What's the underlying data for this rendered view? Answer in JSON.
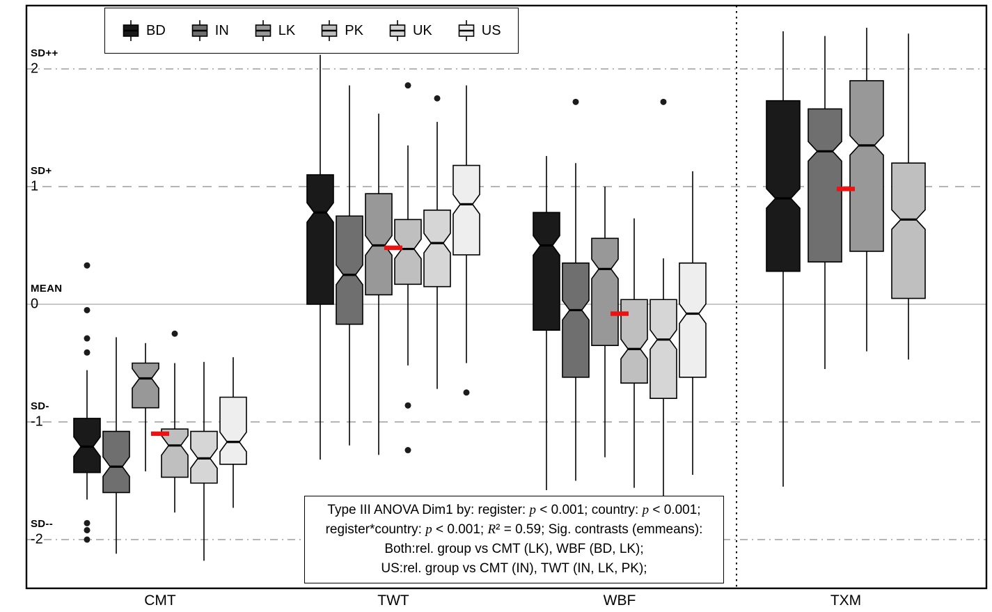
{
  "figure": {
    "background": "#ffffff",
    "border_color": "#000000"
  },
  "legend": {
    "items": [
      {
        "label": "BD",
        "color": "#1a1a1a"
      },
      {
        "label": "IN",
        "color": "#6f6f6f"
      },
      {
        "label": "LK",
        "color": "#989898"
      },
      {
        "label": "PK",
        "color": "#bfbfbf"
      },
      {
        "label": "UK",
        "color": "#d6d6d6"
      },
      {
        "label": "US",
        "color": "#eeeeee"
      }
    ]
  },
  "annotation": {
    "lines": [
      "Type III ANOVA Dim1 by: register: p < 0.001; country: p < 0.001;",
      "register*country: p < 0.001; R² = 0.59; Sig. contrasts (emmeans):",
      "Both:rel. group vs CMT (LK), WBF (BD, LK);",
      "US:rel. group vs CMT (IN), TWT (IN, LK, PK);"
    ]
  },
  "chart_data": {
    "type": "boxplot",
    "orientation": "vertical",
    "title": "",
    "xlabel": "",
    "ylabel": "",
    "categories": [
      "CMT",
      "TWT",
      "WBF",
      "TXM"
    ],
    "series_key": "country",
    "y_axis": {
      "ylim": [
        -2.45,
        2.55
      ],
      "ticks": [
        {
          "value": 2,
          "number": "2",
          "sd_label": "SD++",
          "line_style": "dashdot"
        },
        {
          "value": 1,
          "number": "1",
          "sd_label": "SD+",
          "line_style": "dashed"
        },
        {
          "value": 0,
          "number": "0",
          "sd_label": "MEAN",
          "line_style": "solid"
        },
        {
          "value": -1,
          "number": "-1",
          "sd_label": "SD-",
          "line_style": "dashed"
        },
        {
          "value": -2,
          "number": "-2",
          "sd_label": "SD--",
          "line_style": "dashdot"
        }
      ]
    },
    "divider_before_category": "TXM",
    "red_markers": {
      "meaning": "register mean marker",
      "color": "#ee1111",
      "values": {
        "CMT": -1.1,
        "TWT": 0.48,
        "WBF": -0.08,
        "TXM": 0.98
      }
    },
    "groups": [
      {
        "register": "CMT",
        "boxes": [
          {
            "country": "BD",
            "whislo": -1.66,
            "q1": -1.43,
            "med": -1.21,
            "q3": -0.97,
            "whishi": -0.56,
            "outliers": [
              0.33,
              -0.05,
              -0.29,
              -0.41,
              -1.86,
              -1.92,
              -2.0
            ]
          },
          {
            "country": "IN",
            "whislo": -2.12,
            "q1": -1.6,
            "med": -1.38,
            "q3": -1.08,
            "whishi": -0.28,
            "outliers": []
          },
          {
            "country": "LK",
            "whislo": -1.42,
            "q1": -0.88,
            "med": -0.63,
            "q3": -0.5,
            "whishi": -0.33,
            "outliers": []
          },
          {
            "country": "PK",
            "whislo": -1.77,
            "q1": -1.47,
            "med": -1.2,
            "q3": -1.06,
            "whishi": -0.5,
            "outliers": [
              -0.25
            ]
          },
          {
            "country": "UK",
            "whislo": -2.18,
            "q1": -1.52,
            "med": -1.31,
            "q3": -1.08,
            "whishi": -0.49,
            "outliers": []
          },
          {
            "country": "US",
            "whislo": -1.73,
            "q1": -1.36,
            "med": -1.17,
            "q3": -0.79,
            "whishi": -0.45,
            "outliers": []
          }
        ]
      },
      {
        "register": "TWT",
        "boxes": [
          {
            "country": "BD",
            "whislo": -1.32,
            "q1": 0.0,
            "med": 0.78,
            "q3": 1.1,
            "whishi": 2.12,
            "outliers": []
          },
          {
            "country": "IN",
            "whislo": -1.2,
            "q1": -0.17,
            "med": 0.25,
            "q3": 0.75,
            "whishi": 1.86,
            "outliers": []
          },
          {
            "country": "LK",
            "whislo": -1.28,
            "q1": 0.08,
            "med": 0.5,
            "q3": 0.94,
            "whishi": 1.62,
            "outliers": []
          },
          {
            "country": "PK",
            "whislo": -0.52,
            "q1": 0.17,
            "med": 0.47,
            "q3": 0.72,
            "whishi": 1.35,
            "outliers": [
              1.86,
              -0.86,
              -1.24
            ]
          },
          {
            "country": "UK",
            "whislo": -0.72,
            "q1": 0.15,
            "med": 0.52,
            "q3": 0.8,
            "whishi": 1.55,
            "outliers": [
              1.75
            ]
          },
          {
            "country": "US",
            "whislo": -0.5,
            "q1": 0.42,
            "med": 0.85,
            "q3": 1.18,
            "whishi": 1.86,
            "outliers": [
              -0.75
            ]
          }
        ]
      },
      {
        "register": "WBF",
        "boxes": [
          {
            "country": "BD",
            "whislo": -1.58,
            "q1": -0.22,
            "med": 0.5,
            "q3": 0.78,
            "whishi": 1.26,
            "outliers": []
          },
          {
            "country": "IN",
            "whislo": -1.5,
            "q1": -0.62,
            "med": -0.05,
            "q3": 0.35,
            "whishi": 1.2,
            "outliers": [
              1.72
            ]
          },
          {
            "country": "LK",
            "whislo": -1.3,
            "q1": -0.35,
            "med": 0.3,
            "q3": 0.56,
            "whishi": 1.0,
            "outliers": []
          },
          {
            "country": "PK",
            "whislo": -1.56,
            "q1": -0.67,
            "med": -0.38,
            "q3": 0.04,
            "whishi": 0.73,
            "outliers": []
          },
          {
            "country": "UK",
            "whislo": -1.9,
            "q1": -0.8,
            "med": -0.3,
            "q3": 0.04,
            "whishi": 0.39,
            "outliers": [
              1.72
            ]
          },
          {
            "country": "US",
            "whislo": -1.45,
            "q1": -0.62,
            "med": -0.08,
            "q3": 0.35,
            "whishi": 1.13,
            "outliers": []
          }
        ]
      },
      {
        "register": "TXM",
        "boxes": [
          {
            "country": "BD",
            "whislo": -1.55,
            "q1": 0.28,
            "med": 0.9,
            "q3": 1.73,
            "whishi": 2.32,
            "outliers": []
          },
          {
            "country": "IN",
            "whislo": -0.55,
            "q1": 0.36,
            "med": 1.3,
            "q3": 1.66,
            "whishi": 2.28,
            "outliers": []
          },
          {
            "country": "LK",
            "whislo": -0.4,
            "q1": 0.45,
            "med": 1.35,
            "q3": 1.9,
            "whishi": 2.35,
            "outliers": []
          },
          {
            "country": "PK",
            "whislo": -0.47,
            "q1": 0.05,
            "med": 0.72,
            "q3": 1.2,
            "whishi": 2.3,
            "outliers": []
          }
        ]
      }
    ]
  }
}
